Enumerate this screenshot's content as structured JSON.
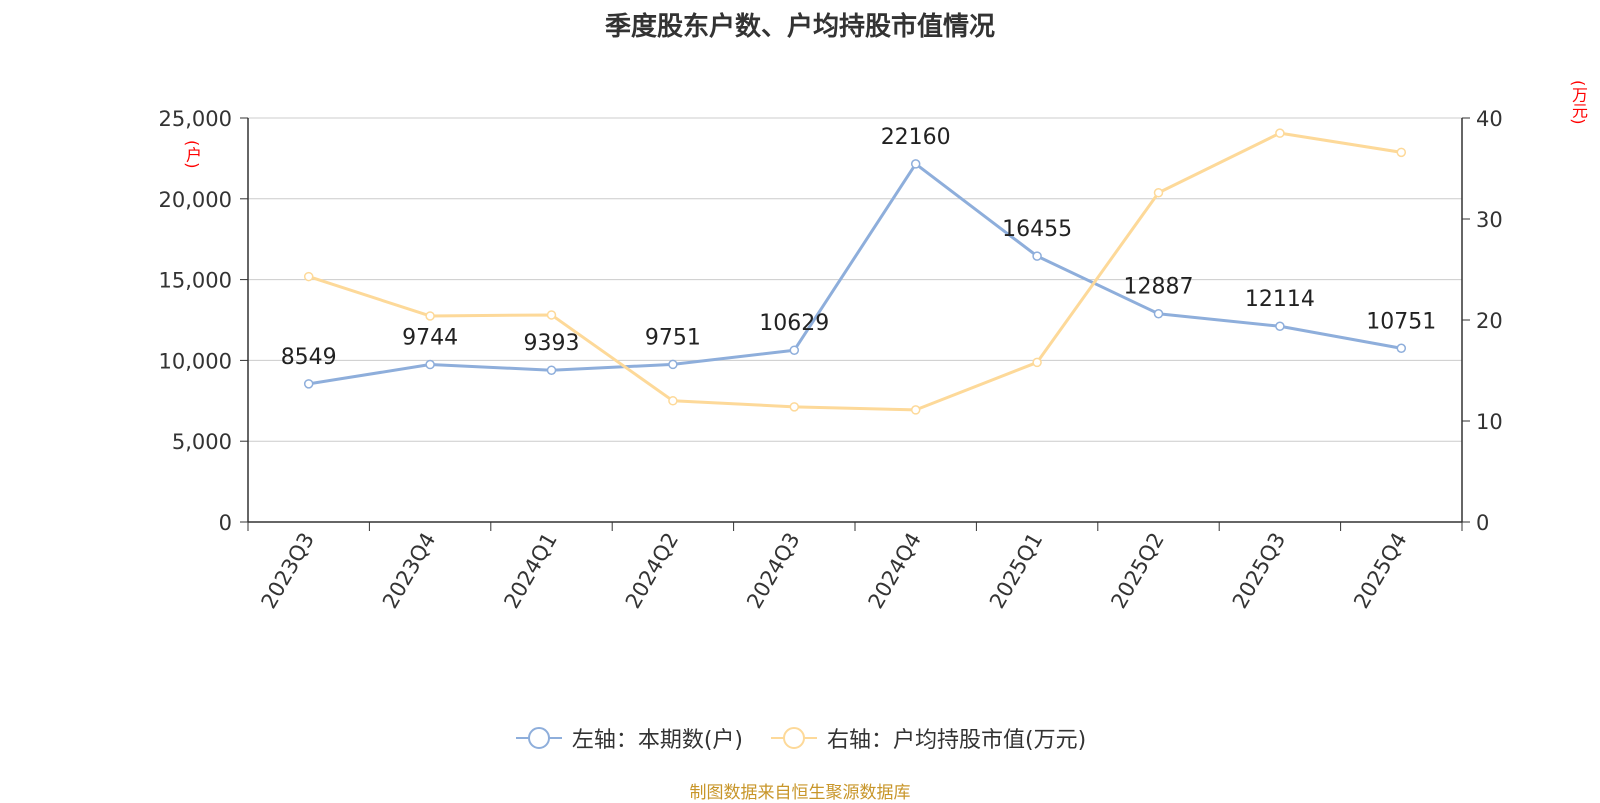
{
  "title": "季度股东户数、户均持股市值情况",
  "source": "制图数据来自恒生聚源数据库",
  "chart_data": {
    "type": "line",
    "categories": [
      "2023Q3",
      "2023Q4",
      "2024Q1",
      "2024Q2",
      "2024Q3",
      "2024Q4",
      "2025Q1",
      "2025Q2",
      "2025Q3",
      "2025Q4"
    ],
    "left_axis": {
      "unit": "(户)",
      "ylim": [
        0,
        25000
      ],
      "ticks": [
        "0",
        "5,000",
        "10,000",
        "15,000",
        "20,000",
        "25,000"
      ]
    },
    "right_axis": {
      "unit": "(万元)",
      "ylim": [
        0,
        40
      ],
      "ticks": [
        "0",
        "10",
        "20",
        "30",
        "40"
      ]
    },
    "grid": true,
    "legend_position": "bottom",
    "series": [
      {
        "name": "左轴：本期数(户)",
        "axis": "left",
        "color": "#8eaedb",
        "values": [
          8549,
          9744,
          9393,
          9751,
          10629,
          22160,
          16455,
          12887,
          12114,
          10751
        ],
        "show_labels": true
      },
      {
        "name": "右轴：户均持股市值(万元)",
        "axis": "right",
        "color": "#fdd999",
        "values": [
          24.3,
          20.4,
          20.5,
          12.0,
          11.4,
          11.1,
          15.8,
          32.6,
          38.5,
          36.6
        ],
        "show_labels": false
      }
    ]
  }
}
